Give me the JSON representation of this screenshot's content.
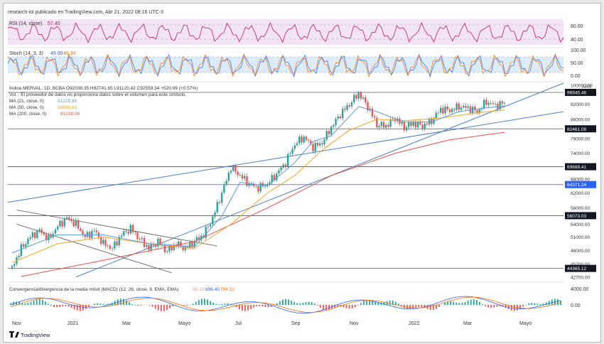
{
  "header": {
    "publisher": "research-iol publicado en TradingView.com, Abr 21, 2022 08:16 UTC-3"
  },
  "rsi": {
    "label": "RSI (14, close)",
    "value_text": "57.40",
    "value": 57.4,
    "levels": [
      "80.00",
      "40.00"
    ],
    "color": "#c2185b"
  },
  "stoch": {
    "label": "Stoch (14, 3, 3)",
    "k_text": "49.90",
    "d_text": "46.34",
    "levels": [
      "100.00",
      "50.00",
      "0.00"
    ],
    "k_color": "#2962ff",
    "d_color": "#ff6d00"
  },
  "main": {
    "ohlc_line": "Índice MERVAL, 1D, BCBA  O92038.35  H92741.65  L91120.42  C92559.34  +520.99 (+0.57%)",
    "volume_note": "Vol. : El proveedor de datos no proporciona datos sobre el volumen para este símbolo.",
    "ma21": {
      "label": "MA (21, close, 0)",
      "value_text": "91225.89",
      "color": "#5b9bd5"
    },
    "ma50": {
      "label": "MA (50, close, 0)",
      "value_text": "89696.63",
      "color": "#f5a623"
    },
    "ma200": {
      "label": "MA (200, close, 0)",
      "value_text": "81238.08",
      "color": "#e0524a"
    },
    "currency": "ARS"
  },
  "macd": {
    "label": "Convergencia/divergencia de la media móvil (MACD) (12, 26, close, 9, EMA, EMA)",
    "v1": "-98.13",
    "v2": "696.40",
    "v3": "794.53",
    "levels": [
      "4000.00",
      "0.00"
    ]
  },
  "footer": {
    "logo_text": "TradingView"
  },
  "colors": {
    "up": "#26a69a",
    "down": "#ef5350",
    "wick": "#37474f",
    "trend": "#4a7fc1",
    "channel": "#555555"
  },
  "chart_data": {
    "type": "candlestick",
    "title": "Índice MERVAL, 1D, BCBA",
    "x_ticks": [
      "Nov",
      "2021",
      "Mar",
      "Mayo",
      "Jul",
      "Sep",
      "Nov",
      "2022",
      "Mar",
      "Mayo"
    ],
    "y_ticks": [
      "100000.00",
      "92000.00",
      "86000.00",
      "79000.00",
      "74000.00",
      "66000.00",
      "62000.00",
      "58000.00",
      "54000.00",
      "51000.00",
      "48000.00",
      "45200.00",
      "42700.00"
    ],
    "y_range": [
      42000,
      101000
    ],
    "y_scale": "log",
    "price_labels": [
      {
        "text": "96945.46",
        "value": 96945.46,
        "color": "#131722"
      },
      {
        "text": "82461.08",
        "value": 82461.08,
        "color": "#131722"
      },
      {
        "text": "69688.41",
        "value": 69688.41,
        "color": "#131722"
      },
      {
        "text": "64371.24",
        "value": 64371.24,
        "color": "#2962ff"
      },
      {
        "text": "56073.03",
        "value": 56073.03,
        "color": "#131722"
      },
      {
        "text": "44365.12",
        "value": 44365.12,
        "color": "#131722"
      }
    ],
    "close_path": [
      [
        0,
        44500
      ],
      [
        2,
        48500
      ],
      [
        4,
        51000
      ],
      [
        6,
        52500
      ],
      [
        8,
        50500
      ],
      [
        10,
        53500
      ],
      [
        12,
        55500
      ],
      [
        14,
        54000
      ],
      [
        16,
        51000
      ],
      [
        18,
        52500
      ],
      [
        20,
        49500
      ],
      [
        22,
        48500
      ],
      [
        24,
        51500
      ],
      [
        26,
        53000
      ],
      [
        28,
        50500
      ],
      [
        30,
        48500
      ],
      [
        32,
        50000
      ],
      [
        34,
        47800
      ],
      [
        36,
        49500
      ],
      [
        38,
        48500
      ],
      [
        40,
        50000
      ],
      [
        42,
        51500
      ],
      [
        44,
        55500
      ],
      [
        46,
        62000
      ],
      [
        48,
        69500
      ],
      [
        50,
        67000
      ],
      [
        52,
        64500
      ],
      [
        54,
        63500
      ],
      [
        56,
        64500
      ],
      [
        58,
        67500
      ],
      [
        60,
        71000
      ],
      [
        62,
        77000
      ],
      [
        64,
        79500
      ],
      [
        66,
        76000
      ],
      [
        68,
        77500
      ],
      [
        70,
        83000
      ],
      [
        72,
        88000
      ],
      [
        74,
        92000
      ],
      [
        76,
        96500
      ],
      [
        78,
        91000
      ],
      [
        80,
        84000
      ],
      [
        82,
        83500
      ],
      [
        84,
        86500
      ],
      [
        86,
        83000
      ],
      [
        88,
        84500
      ],
      [
        90,
        83500
      ],
      [
        92,
        85500
      ],
      [
        94,
        90000
      ],
      [
        96,
        89500
      ],
      [
        98,
        91000
      ],
      [
        100,
        90500
      ],
      [
        102,
        89000
      ],
      [
        104,
        93000
      ],
      [
        106,
        91500
      ],
      [
        108,
        92500
      ]
    ],
    "ma21": [
      [
        0,
        47500
      ],
      [
        10,
        51500
      ],
      [
        20,
        51500
      ],
      [
        30,
        49500
      ],
      [
        40,
        48800
      ],
      [
        46,
        56000
      ],
      [
        50,
        65000
      ],
      [
        56,
        64000
      ],
      [
        62,
        71000
      ],
      [
        66,
        78000
      ],
      [
        70,
        80000
      ],
      [
        76,
        91000
      ],
      [
        80,
        89000
      ],
      [
        86,
        85000
      ],
      [
        92,
        85000
      ],
      [
        98,
        89000
      ],
      [
        104,
        90500
      ],
      [
        108,
        91200
      ]
    ],
    "ma50": [
      [
        0,
        45500
      ],
      [
        10,
        49500
      ],
      [
        20,
        51000
      ],
      [
        30,
        49500
      ],
      [
        40,
        48500
      ],
      [
        48,
        54000
      ],
      [
        56,
        62000
      ],
      [
        62,
        67000
      ],
      [
        68,
        75000
      ],
      [
        74,
        82000
      ],
      [
        80,
        86000
      ],
      [
        86,
        85500
      ],
      [
        94,
        86500
      ],
      [
        102,
        88500
      ],
      [
        108,
        89700
      ]
    ],
    "ma200": [
      [
        2,
        42800
      ],
      [
        20,
        46000
      ],
      [
        40,
        50000
      ],
      [
        56,
        58000
      ],
      [
        70,
        67000
      ],
      [
        84,
        74000
      ],
      [
        96,
        78500
      ],
      [
        108,
        81200
      ]
    ]
  }
}
